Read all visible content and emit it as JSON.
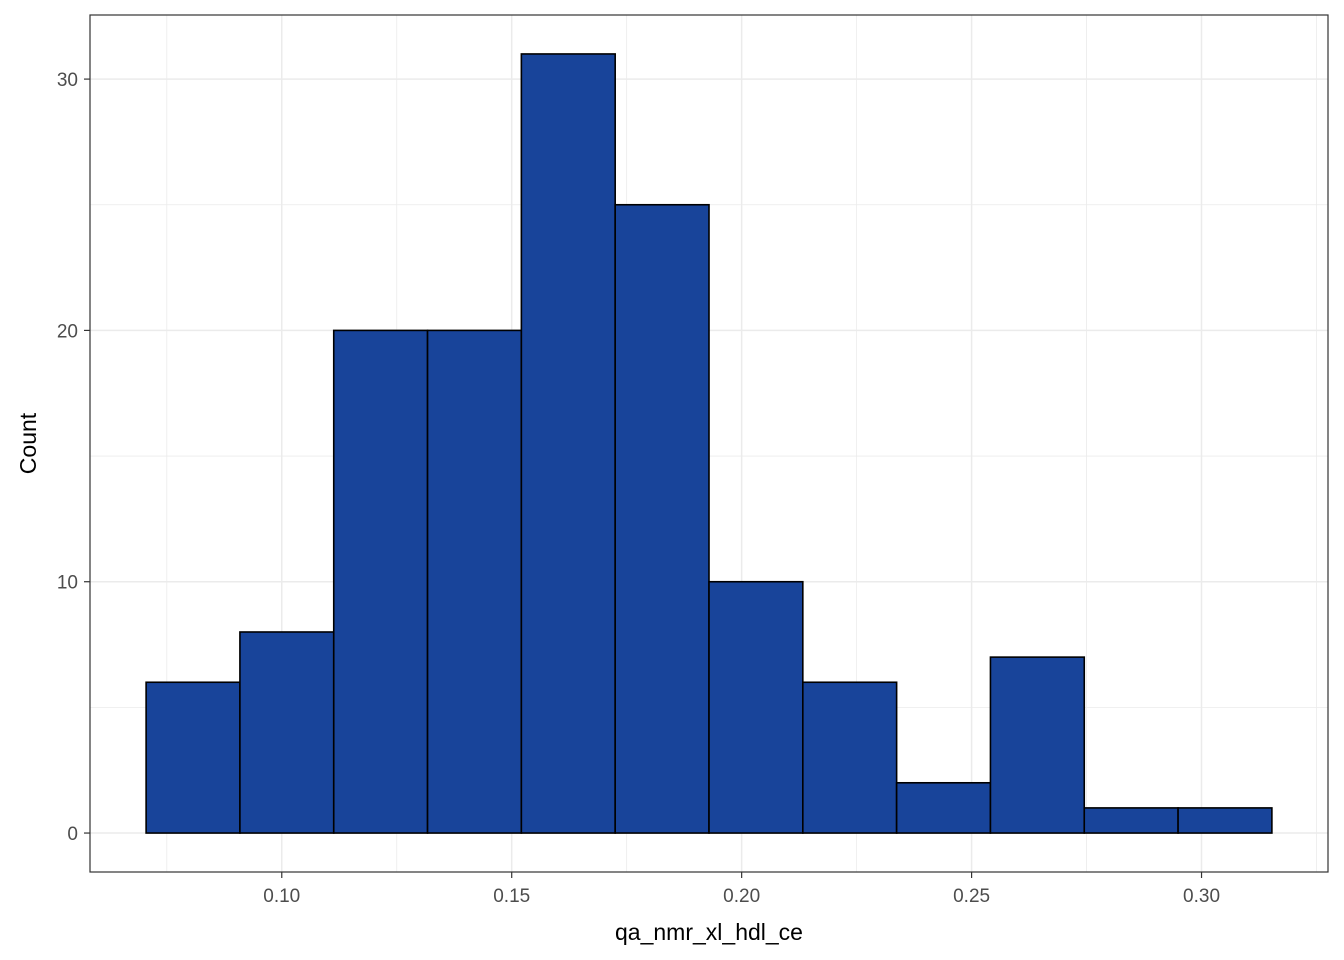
{
  "chart_data": {
    "type": "bar",
    "histogram": true,
    "xlabel": "qa_nmr_xl_hdl_ce",
    "ylabel": "Count",
    "bins": [
      {
        "x0": 0.0705,
        "x1": 0.0909,
        "count": 6
      },
      {
        "x0": 0.0909,
        "x1": 0.1113,
        "count": 8
      },
      {
        "x0": 0.1113,
        "x1": 0.1317,
        "count": 20
      },
      {
        "x0": 0.1317,
        "x1": 0.1521,
        "count": 20
      },
      {
        "x0": 0.1521,
        "x1": 0.1725,
        "count": 31
      },
      {
        "x0": 0.1725,
        "x1": 0.1929,
        "count": 25
      },
      {
        "x0": 0.1929,
        "x1": 0.2133,
        "count": 10
      },
      {
        "x0": 0.2133,
        "x1": 0.2337,
        "count": 6
      },
      {
        "x0": 0.2337,
        "x1": 0.2541,
        "count": 2
      },
      {
        "x0": 0.2541,
        "x1": 0.2745,
        "count": 7
      },
      {
        "x0": 0.2745,
        "x1": 0.2949,
        "count": 1
      },
      {
        "x0": 0.2949,
        "x1": 0.3153,
        "count": 1
      }
    ],
    "x_ticks": [
      {
        "value": 0.1,
        "label": "0.10"
      },
      {
        "value": 0.15,
        "label": "0.15"
      },
      {
        "value": 0.2,
        "label": "0.20"
      },
      {
        "value": 0.25,
        "label": "0.25"
      },
      {
        "value": 0.3,
        "label": "0.30"
      }
    ],
    "y_ticks": [
      {
        "value": 0,
        "label": "0"
      },
      {
        "value": 10,
        "label": "10"
      },
      {
        "value": 20,
        "label": "20"
      },
      {
        "value": 30,
        "label": "30"
      }
    ],
    "xlim": [
      0.0583,
      0.3275
    ],
    "ylim": [
      -1.55,
      32.55
    ],
    "grid": true,
    "colors": {
      "bar_fill": "#18449A",
      "bar_stroke": "#000000",
      "grid": "#EBEBEB",
      "panel_border": "#333333"
    }
  }
}
